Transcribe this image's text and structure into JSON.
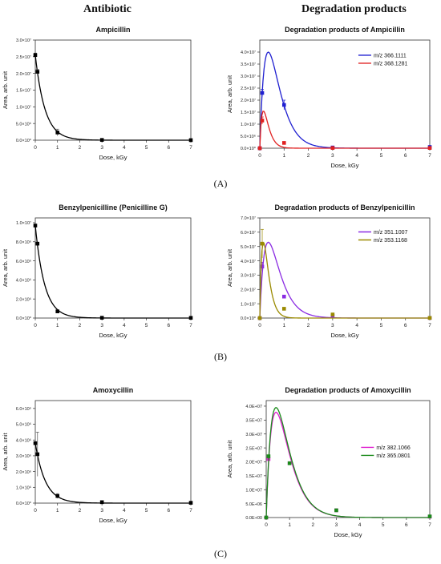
{
  "headers": {
    "left": "Antibiotic",
    "right": "Degradation products"
  },
  "panel_labels": [
    "(A)",
    "(B)",
    "(C)"
  ],
  "chart_data": [
    {
      "type": "scatter",
      "title": "Ampicillin",
      "xlabel": "Dose, kGy",
      "ylabel": "Area, arb. unit",
      "xlim": [
        0,
        7
      ],
      "ylim": [
        0,
        30000000
      ],
      "x_ticks": [
        0,
        1,
        2,
        3,
        4,
        5,
        6,
        7
      ],
      "y_ticks": [
        0,
        5000000,
        10000000,
        15000000,
        20000000,
        25000000,
        30000000
      ],
      "y_tick_labels": [
        "0.0×10⁰",
        "5.0×10⁶",
        "1.0×10⁷",
        "1.5×10⁷",
        "2.0×10⁷",
        "2.5×10⁷",
        "3.0×10⁷"
      ],
      "series": [
        {
          "color": "#000000",
          "marker": "square",
          "x": [
            0,
            0.1,
            1,
            3,
            7
          ],
          "y": [
            25500000,
            20500000,
            2300000,
            80000,
            20000
          ],
          "err": [
            600000,
            700000,
            1000000,
            0,
            0
          ],
          "fit": {
            "kind": "decay",
            "a": 25500000,
            "k": 2.3
          }
        }
      ]
    },
    {
      "type": "scatter",
      "title": "Degradation products of Ampicillin",
      "xlabel": "Dose, kGy",
      "ylabel": "Area, arb. unit",
      "xlim": [
        0,
        7
      ],
      "ylim": [
        0,
        45000000
      ],
      "x_ticks": [
        0,
        1,
        2,
        3,
        4,
        5,
        6,
        7
      ],
      "y_ticks": [
        0,
        5000000,
        10000000,
        15000000,
        20000000,
        25000000,
        30000000,
        35000000,
        40000000
      ],
      "y_tick_labels": [
        "0.0×10⁰",
        "5.0×10⁶",
        "1.0×10⁷",
        "1.5×10⁷",
        "2.0×10⁷",
        "2.5×10⁷",
        "3.0×10⁷",
        "3.5×10⁷",
        "4.0×10⁷"
      ],
      "legend_position": "top-right",
      "series": [
        {
          "name": "m/z 366.1111",
          "color": "#1f1fd0",
          "marker": "square",
          "x": [
            0,
            0.1,
            1,
            3,
            7
          ],
          "y": [
            0,
            23000000,
            18000000,
            300000,
            500000
          ],
          "err": [
            0,
            1500000,
            2000000,
            0,
            0
          ],
          "fit": {
            "kind": "peak",
            "peak_x": 0.35,
            "peak_y": 40000000
          }
        },
        {
          "name": "m/z 368.1281",
          "color": "#e02020",
          "marker": "square",
          "x": [
            0,
            0.1,
            1,
            3,
            7
          ],
          "y": [
            0,
            11500000,
            2200000,
            100000,
            100000
          ],
          "err": [
            0,
            1500000,
            0,
            0,
            0
          ],
          "fit": {
            "kind": "peak",
            "peak_x": 0.15,
            "peak_y": 15500000
          }
        }
      ]
    },
    {
      "type": "scatter",
      "title": "Benzylpenicilline (Penicilline G)",
      "xlabel": "Dose, kGy",
      "ylabel": "Area, arb. unit",
      "xlim": [
        0,
        7
      ],
      "ylim": [
        0,
        10500000
      ],
      "x_ticks": [
        0,
        1,
        2,
        3,
        4,
        5,
        6,
        7
      ],
      "y_ticks": [
        0,
        2000000,
        4000000,
        6000000,
        8000000,
        10000000
      ],
      "y_tick_labels": [
        "0.0×10⁰",
        "2.0×10⁶",
        "4.0×10⁶",
        "6.0×10⁶",
        "8.0×10⁶",
        "1.0×10⁷"
      ],
      "series": [
        {
          "color": "#000000",
          "marker": "square",
          "x": [
            0,
            0.1,
            1,
            3,
            7
          ],
          "y": [
            9700000,
            7800000,
            700000,
            30000,
            20000
          ],
          "err": [
            0,
            0,
            0,
            0,
            0
          ],
          "fit": {
            "kind": "decay",
            "a": 9700000,
            "k": 2.4
          }
        }
      ]
    },
    {
      "type": "scatter",
      "title": "Degradation products of Benzylpenicillin",
      "xlabel": "Dose, kGy",
      "ylabel": "Area, arb. unit",
      "xlim": [
        0,
        7
      ],
      "ylim": [
        0,
        70000000
      ],
      "x_ticks": [
        0,
        1,
        2,
        3,
        4,
        5,
        6,
        7
      ],
      "y_ticks": [
        0,
        10000000,
        20000000,
        30000000,
        40000000,
        50000000,
        60000000,
        70000000
      ],
      "y_tick_labels": [
        "0.0×10⁰",
        "1.0×10⁷",
        "2.0×10⁷",
        "3.0×10⁷",
        "4.0×10⁷",
        "5.0×10⁷",
        "6.0×10⁷",
        "7.0×10⁷"
      ],
      "legend_position": "top-right",
      "series": [
        {
          "name": "m/z 351.1007",
          "color": "#8a2be2",
          "marker": "square",
          "x": [
            0,
            0.1,
            1,
            3,
            7
          ],
          "y": [
            0,
            36000000,
            15000000,
            1500000,
            100000
          ],
          "err": [
            0,
            3000000,
            0,
            0,
            0
          ],
          "fit": {
            "kind": "peak",
            "peak_x": 0.35,
            "peak_y": 53000000
          }
        },
        {
          "name": "m/z 353.1168",
          "color": "#9a8a00",
          "marker": "square",
          "x": [
            0,
            0.1,
            1,
            3,
            7
          ],
          "y": [
            0,
            52000000,
            6500000,
            2500000,
            100000
          ],
          "err": [
            0,
            10000000,
            0,
            0,
            0
          ],
          "fit": {
            "kind": "peak",
            "peak_x": 0.15,
            "peak_y": 53000000
          }
        }
      ]
    },
    {
      "type": "scatter",
      "title": "Amoxycillin",
      "xlabel": "Dose, kGy",
      "ylabel": "Area, arb. unit",
      "xlim": [
        0,
        7
      ],
      "ylim": [
        0,
        6500000
      ],
      "x_ticks": [
        0,
        1,
        2,
        3,
        4,
        5,
        6,
        7
      ],
      "y_ticks": [
        0,
        1000000,
        2000000,
        3000000,
        4000000,
        5000000,
        6000000
      ],
      "y_tick_labels": [
        "0.0×10⁰",
        "1.0×10⁶",
        "2.0×10⁶",
        "3.0×10⁶",
        "4.0×10⁶",
        "5.0×10⁶",
        "6.0×10⁶"
      ],
      "series": [
        {
          "color": "#000000",
          "marker": "square",
          "x": [
            0,
            0.1,
            1,
            3,
            7
          ],
          "y": [
            3800000,
            3100000,
            450000,
            60000,
            20000
          ],
          "err": [
            0,
            1400000,
            150000,
            0,
            0
          ],
          "fit": {
            "kind": "decay",
            "a": 3800000,
            "k": 2.2
          }
        }
      ]
    },
    {
      "type": "scatter",
      "title": "Degradation products of Amoxycillin",
      "xlabel": "Dose, kGy",
      "ylabel": "Area, arb. unit",
      "xlim": [
        0,
        7
      ],
      "ylim": [
        0,
        42000000
      ],
      "x_ticks": [
        0,
        1,
        2,
        3,
        4,
        5,
        6,
        7
      ],
      "y_ticks": [
        0,
        5000000,
        10000000,
        15000000,
        20000000,
        25000000,
        30000000,
        35000000,
        40000000
      ],
      "y_tick_labels": [
        "0.0E+00",
        "5.0E+06",
        "1.0E+07",
        "1.5E+07",
        "2.0E+07",
        "2.5E+07",
        "3.0E+07",
        "3.5E+07",
        "4.0E+07"
      ],
      "legend_position": "center-right",
      "series": [
        {
          "name": "m/z 382.1066",
          "color": "#e020d0",
          "marker": "square",
          "x": [
            0,
            0.1,
            1,
            3,
            7
          ],
          "y": [
            0,
            21000000,
            19500000,
            2600000,
            300000
          ],
          "err": [
            0,
            0,
            0,
            0,
            0
          ],
          "fit": {
            "kind": "peak",
            "peak_x": 0.42,
            "peak_y": 37800000
          }
        },
        {
          "name": "m/z 365.0801",
          "color": "#1a8a1a",
          "marker": "square",
          "x": [
            0,
            0.1,
            1,
            3,
            7
          ],
          "y": [
            0,
            22000000,
            19500000,
            2600000,
            400000
          ],
          "err": [
            0,
            0,
            0,
            0,
            0
          ],
          "fit": {
            "kind": "peak",
            "peak_x": 0.42,
            "peak_y": 39500000
          }
        }
      ]
    }
  ]
}
